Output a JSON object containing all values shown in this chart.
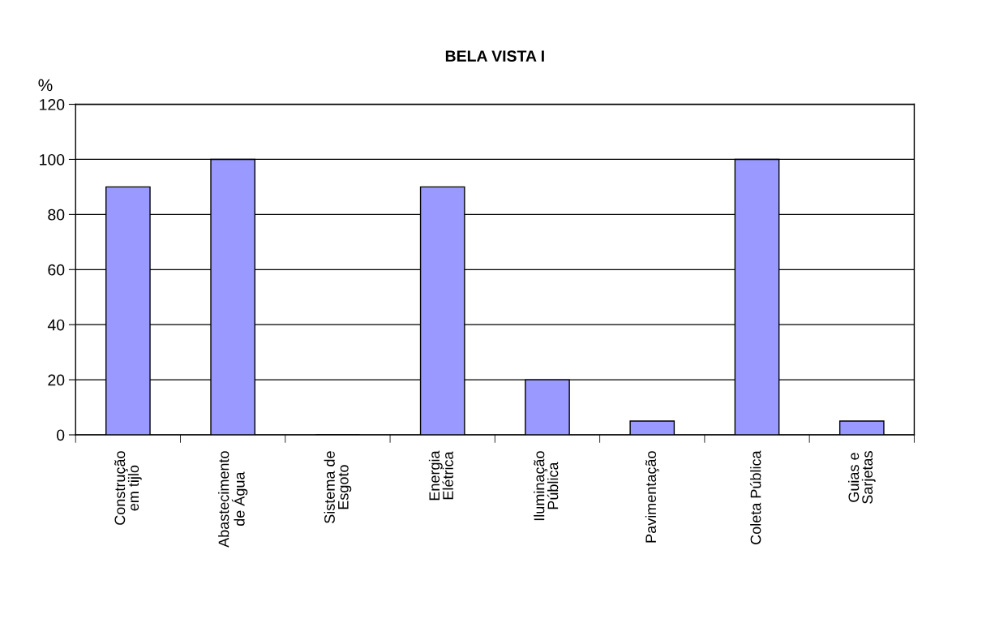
{
  "chart_data": {
    "type": "bar",
    "title": "BELA VISTA I",
    "ylabel": "%",
    "categories": [
      "Construção\nem tijlo",
      "Abastecimento\nde Água",
      "Sistema de\nEsgoto",
      "Energia\nElétrica",
      "Iluminação\nPública",
      "Pavimentação",
      "Coleta Pública",
      "Guias e\nSarjetas"
    ],
    "values": [
      90,
      100,
      0,
      90,
      20,
      5,
      100,
      5
    ],
    "color": "#9999ff",
    "ylim": [
      0,
      120
    ],
    "yticks": [
      0,
      20,
      40,
      60,
      80,
      100,
      120
    ],
    "grid": "y",
    "legend": false
  }
}
